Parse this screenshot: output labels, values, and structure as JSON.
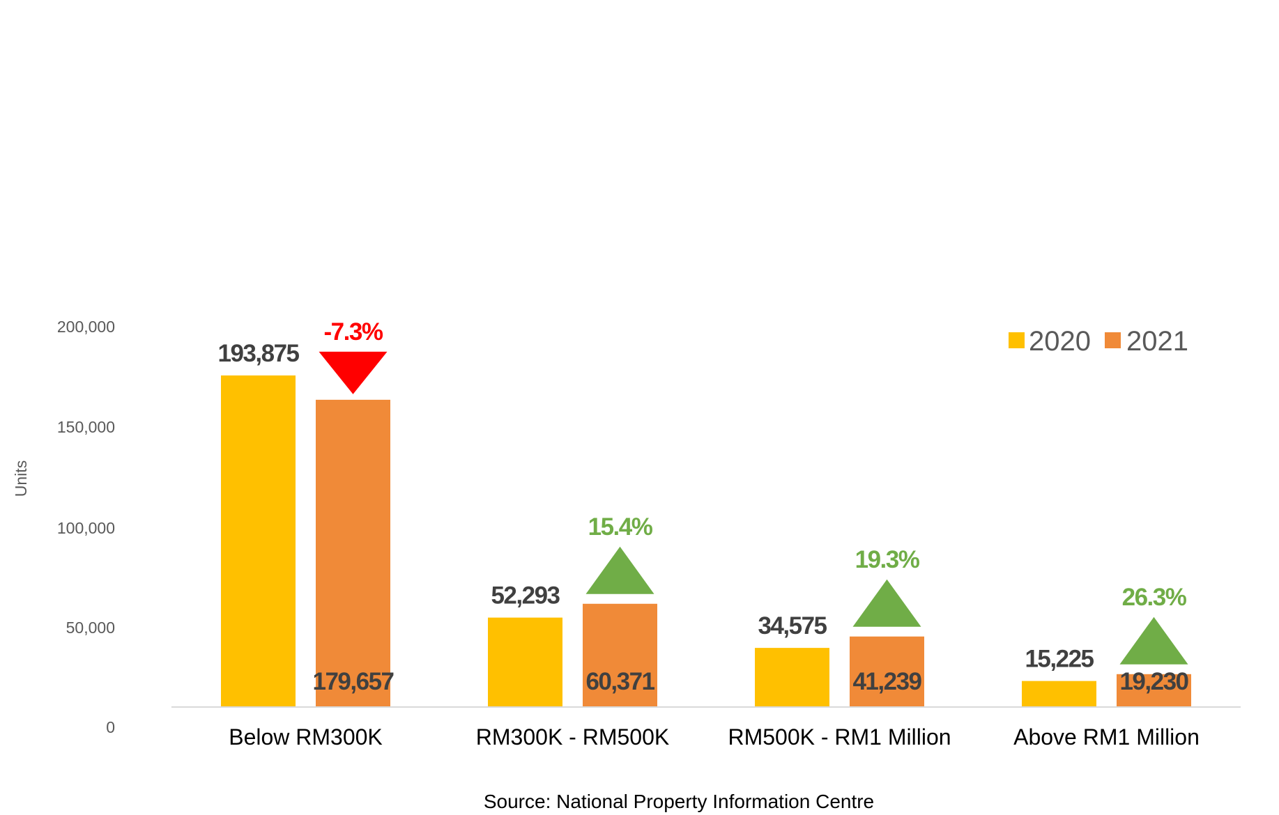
{
  "chart_data": {
    "type": "bar",
    "title": "",
    "xlabel": "",
    "ylabel": "Units",
    "ylim": [
      0,
      200000
    ],
    "y_ticks": [
      "0",
      "50,000",
      "100,000",
      "150,000",
      "200,000"
    ],
    "categories": [
      "Below RM300K",
      "RM300K - RM500K",
      "RM500K - RM1 Million",
      "Above RM1 Million"
    ],
    "series": [
      {
        "name": "2020",
        "color": "#FFC000",
        "values": [
          193875,
          52293,
          34575,
          15225
        ],
        "labels": [
          "193,875",
          "52,293",
          "34,575",
          "15,225"
        ]
      },
      {
        "name": "2021",
        "color": "#F08A38",
        "values": [
          179657,
          60371,
          41239,
          19230
        ],
        "labels": [
          "179,657",
          "60,371",
          "41,239",
          "19,230"
        ]
      }
    ],
    "changes": [
      {
        "label": "-7.3%",
        "direction": "down",
        "color": "#FF0000"
      },
      {
        "label": "15.4%",
        "direction": "up",
        "color": "#70AD47"
      },
      {
        "label": "19.3%",
        "direction": "up",
        "color": "#70AD47"
      },
      {
        "label": "26.3%",
        "direction": "up",
        "color": "#70AD47"
      }
    ],
    "legend": {
      "placement": "top-right",
      "entries": [
        "2020",
        "2021"
      ]
    },
    "grid": false,
    "source": "Source: National Property Information Centre"
  }
}
